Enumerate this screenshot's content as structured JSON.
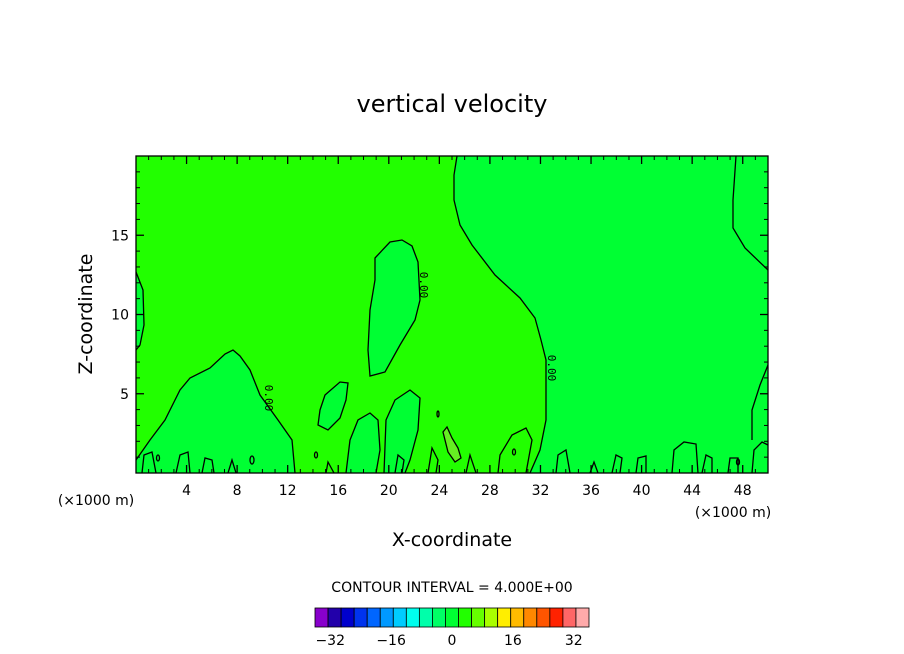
{
  "chart_data": {
    "type": "heatmap",
    "title": "vertical velocity",
    "xlabel": "X-coordinate",
    "ylabel": "Z-coordinate",
    "x_unit_label": "(×1000 m)",
    "xlim": [
      0,
      50
    ],
    "ylim": [
      0,
      20
    ],
    "xticks": [
      4,
      8,
      12,
      16,
      20,
      24,
      28,
      32,
      36,
      40,
      44,
      48
    ],
    "yticks": [
      5,
      10,
      15
    ],
    "grid": false,
    "contour_interval_text": "CONTOUR INTERVAL = 4.000E+00",
    "contour_label": "0.00",
    "contour_levels": [
      0
    ],
    "field_levels": {
      "dominant": {
        "level": 0,
        "color": "#22ff00"
      },
      "positive_zones": {
        "level": 4,
        "color": "#00ff33"
      },
      "small_patch": {
        "level": 8,
        "color": "#66ee22"
      }
    },
    "colorbar": {
      "min": -36,
      "max": 36,
      "step": 4,
      "ticks": [
        -32,
        -16,
        0,
        16,
        32
      ],
      "colors": [
        "#8800cc",
        "#2200aa",
        "#0000cc",
        "#0033ee",
        "#0066ff",
        "#0099ff",
        "#00ccff",
        "#00ffee",
        "#00ffaa",
        "#00ff66",
        "#00ff33",
        "#22ff00",
        "#66ff00",
        "#aaff00",
        "#ffee00",
        "#ffbb00",
        "#ff8800",
        "#ff5500",
        "#ff2200",
        "#ff6666",
        "#ffaaaa"
      ]
    }
  }
}
